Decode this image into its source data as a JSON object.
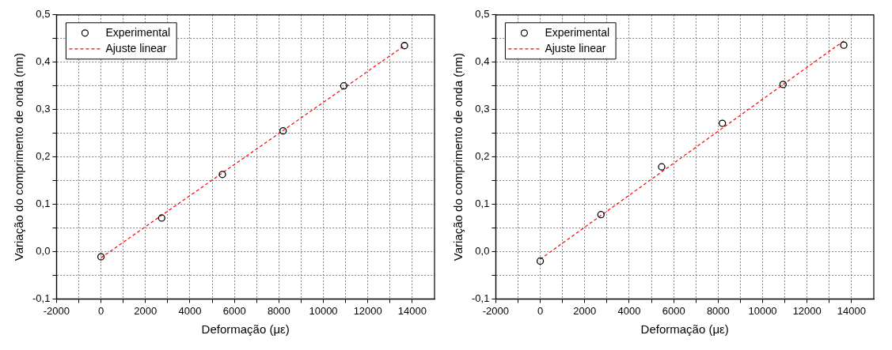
{
  "chart_data": [
    {
      "type": "scatter",
      "xlabel": "Deformação (με)",
      "ylabel": "Variação do comprimento de onda (nm)",
      "xlim": [
        -2000,
        15000
      ],
      "ylim": [
        -0.1,
        0.5
      ],
      "xticks": [
        -2000,
        {
          "value": -1000,
          "label": null
        },
        0,
        {
          "value": 1000,
          "label": null
        },
        2000,
        {
          "value": 3000,
          "label": null
        },
        4000,
        {
          "value": 5000,
          "label": null
        },
        6000,
        {
          "value": 7000,
          "label": null
        },
        8000,
        {
          "value": 9000,
          "label": null
        },
        10000,
        {
          "value": 11000,
          "label": null
        },
        12000,
        {
          "value": 13000,
          "label": null
        },
        14000
      ],
      "yticks": [
        {
          "value": -0.1,
          "label": "-0,1"
        },
        {
          "value": -0.05,
          "label": null
        },
        {
          "value": 0,
          "label": "0,0"
        },
        {
          "value": 0.05,
          "label": null
        },
        {
          "value": 0.1,
          "label": "0,1"
        },
        {
          "value": 0.15,
          "label": null
        },
        {
          "value": 0.2,
          "label": "0,2"
        },
        {
          "value": 0.25,
          "label": null
        },
        {
          "value": 0.3,
          "label": "0,3"
        },
        {
          "value": 0.35,
          "label": null
        },
        {
          "value": 0.4,
          "label": "0,4"
        },
        {
          "value": 0.45,
          "label": null
        },
        {
          "value": 0.5,
          "label": "0,5"
        }
      ],
      "grid": true,
      "legend": "top left",
      "series": [
        {
          "name": "Experimental",
          "marker": "circle",
          "color": "#000000",
          "x": [
            0,
            2730,
            5460,
            8190,
            10920,
            13650
          ],
          "values": [
            -0.011,
            0.071,
            0.163,
            0.255,
            0.35,
            0.435
          ]
        },
        {
          "name": "Ajuste linear",
          "type": "line",
          "marker": "none",
          "line_style": "dashed",
          "color": "#ff0000",
          "x": [
            0,
            13650
          ],
          "values": [
            -0.013,
            0.435
          ]
        }
      ]
    },
    {
      "type": "scatter",
      "xlabel": "Deformação (με)",
      "ylabel": "Variação do comprimento de onda (nm)",
      "xlim": [
        -2000,
        15000
      ],
      "ylim": [
        -0.1,
        0.5
      ],
      "xticks": [
        -2000,
        {
          "value": -1000,
          "label": null
        },
        0,
        {
          "value": 1000,
          "label": null
        },
        2000,
        {
          "value": 3000,
          "label": null
        },
        4000,
        {
          "value": 5000,
          "label": null
        },
        6000,
        {
          "value": 7000,
          "label": null
        },
        8000,
        {
          "value": 9000,
          "label": null
        },
        10000,
        {
          "value": 11000,
          "label": null
        },
        12000,
        {
          "value": 13000,
          "label": null
        },
        14000
      ],
      "yticks": [
        {
          "value": -0.1,
          "label": "-0,1"
        },
        {
          "value": -0.05,
          "label": null
        },
        {
          "value": 0,
          "label": "0,0"
        },
        {
          "value": 0.05,
          "label": null
        },
        {
          "value": 0.1,
          "label": "0,1"
        },
        {
          "value": 0.15,
          "label": null
        },
        {
          "value": 0.2,
          "label": "0,2"
        },
        {
          "value": 0.25,
          "label": null
        },
        {
          "value": 0.3,
          "label": "0,3"
        },
        {
          "value": 0.35,
          "label": null
        },
        {
          "value": 0.4,
          "label": "0,4"
        },
        {
          "value": 0.45,
          "label": null
        },
        {
          "value": 0.5,
          "label": "0,5"
        }
      ],
      "grid": true,
      "legend": "top left",
      "series": [
        {
          "name": "Experimental",
          "marker": "circle",
          "color": "#000000",
          "x": [
            0,
            2730,
            5460,
            8190,
            10920,
            13650
          ],
          "values": [
            -0.02,
            0.078,
            0.179,
            0.271,
            0.353,
            0.436
          ]
        },
        {
          "name": "Ajuste linear",
          "type": "line",
          "marker": "none",
          "line_style": "dashed",
          "color": "#ff0000",
          "x": [
            0,
            13650
          ],
          "values": [
            -0.016,
            0.445
          ]
        }
      ]
    }
  ]
}
